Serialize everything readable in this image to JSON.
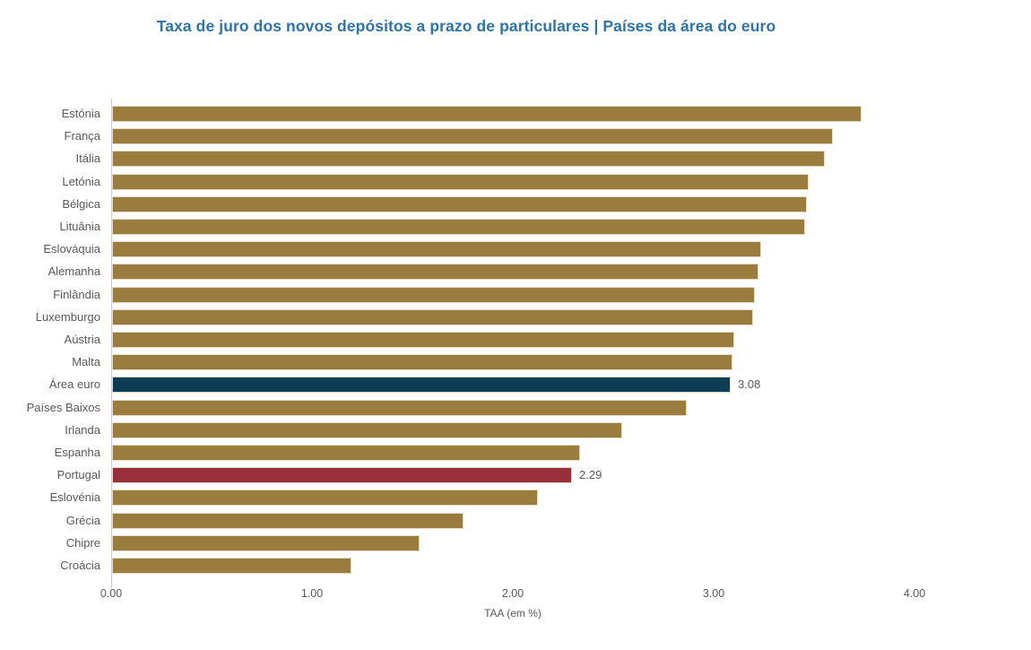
{
  "chart_data": {
    "type": "bar",
    "orientation": "horizontal",
    "title": "Taxa de juro dos novos depósitos a prazo de particulares | Países da área do euro",
    "xlabel": "TAA (em %)",
    "xlim": [
      0,
      4
    ],
    "xticks": [
      "0.00",
      "1.00",
      "2.00",
      "3.00",
      "4.00"
    ],
    "grid": false,
    "legend": false,
    "categories": [
      "Estónia",
      "França",
      "Itália",
      "Letónia",
      "Bélgica",
      "Lituânia",
      "Eslováquia",
      "Alemanha",
      "Finlândia",
      "Luxemburgo",
      "Aústria",
      "Malta",
      "Área euro",
      "Países Baixos",
      "Irlanda",
      "Espanha",
      "Portugal",
      "Eslovénia",
      "Grécia",
      "Chipre",
      "Croácia"
    ],
    "values": [
      3.73,
      3.59,
      3.55,
      3.47,
      3.46,
      3.45,
      3.23,
      3.22,
      3.2,
      3.19,
      3.1,
      3.09,
      3.08,
      2.86,
      2.54,
      2.33,
      2.29,
      2.12,
      1.75,
      1.53,
      1.19
    ],
    "bars": [
      {
        "label": "Estónia",
        "value": 3.73,
        "highlight": "none"
      },
      {
        "label": "França",
        "value": 3.59,
        "highlight": "none"
      },
      {
        "label": "Itália",
        "value": 3.55,
        "highlight": "none"
      },
      {
        "label": "Letónia",
        "value": 3.47,
        "highlight": "none"
      },
      {
        "label": "Bélgica",
        "value": 3.46,
        "highlight": "none"
      },
      {
        "label": "Lituânia",
        "value": 3.45,
        "highlight": "none"
      },
      {
        "label": "Eslováquia",
        "value": 3.23,
        "highlight": "none"
      },
      {
        "label": "Alemanha",
        "value": 3.22,
        "highlight": "none"
      },
      {
        "label": "Finlândia",
        "value": 3.2,
        "highlight": "none"
      },
      {
        "label": "Luxemburgo",
        "value": 3.19,
        "highlight": "none"
      },
      {
        "label": "Aústria",
        "value": 3.1,
        "highlight": "none"
      },
      {
        "label": "Malta",
        "value": 3.09,
        "highlight": "none"
      },
      {
        "label": "Área euro",
        "value": 3.08,
        "highlight": "euro_area",
        "value_label": "3.08"
      },
      {
        "label": "Países Baixos",
        "value": 2.86,
        "highlight": "none"
      },
      {
        "label": "Irlanda",
        "value": 2.54,
        "highlight": "none"
      },
      {
        "label": "Espanha",
        "value": 2.33,
        "highlight": "none"
      },
      {
        "label": "Portugal",
        "value": 2.29,
        "highlight": "portugal",
        "value_label": "2.29"
      },
      {
        "label": "Eslovénia",
        "value": 2.12,
        "highlight": "none"
      },
      {
        "label": "Grécia",
        "value": 1.75,
        "highlight": "none"
      },
      {
        "label": "Chipre",
        "value": 1.53,
        "highlight": "none"
      },
      {
        "label": "Croácia",
        "value": 1.19,
        "highlight": "none"
      }
    ]
  },
  "colors": {
    "bar_default": "#9a7d3e",
    "bar_euro_area": "#0d3c55",
    "bar_portugal": "#97303a",
    "bar_border": "#e6dcc3",
    "title_text": "#2e74a6",
    "axis_text": "#595959",
    "axis_line": "#cccccc"
  }
}
